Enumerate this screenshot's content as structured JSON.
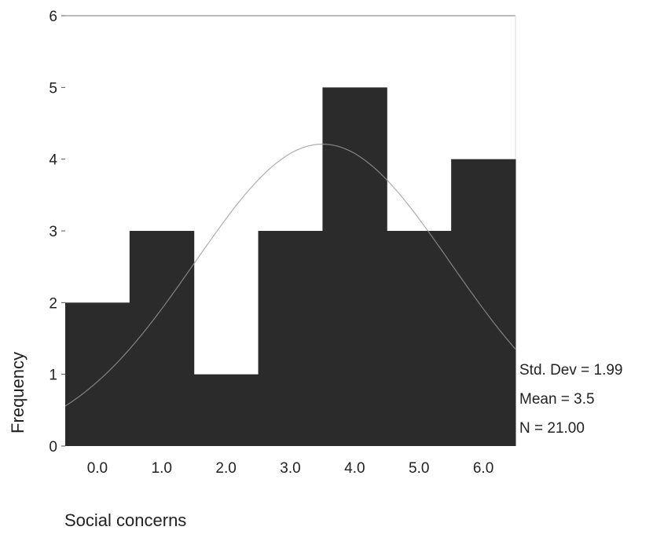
{
  "chart_data": {
    "type": "bar",
    "xlabel": "Social concerns",
    "ylabel": "Frequency",
    "categories": [
      "0.0",
      "1.0",
      "2.0",
      "3.0",
      "4.0",
      "5.0",
      "6.0"
    ],
    "values": [
      2,
      3,
      1,
      3,
      5,
      3,
      4
    ],
    "ylim": [
      0,
      6
    ],
    "yticks": [
      "0",
      "1",
      "2",
      "3",
      "4",
      "5",
      "6"
    ],
    "grid": false,
    "bar_color": "#2b2b2b",
    "normal_curve": {
      "mean": 3.5,
      "std_dev": 1.99,
      "n": 21
    },
    "stats": {
      "std_dev": "Std. Dev = 1.99",
      "mean": "Mean = 3.5",
      "n": "N = 21.00"
    }
  }
}
